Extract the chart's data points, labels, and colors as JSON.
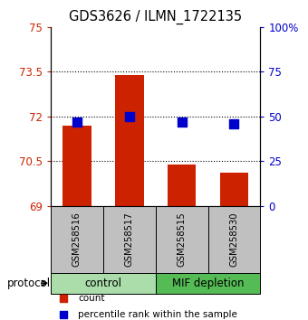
{
  "title": "GDS3626 / ILMN_1722135",
  "samples": [
    "GSM258516",
    "GSM258517",
    "GSM258515",
    "GSM258530"
  ],
  "bar_values": [
    71.7,
    73.4,
    70.4,
    70.1
  ],
  "percentile_values": [
    47,
    50,
    47,
    46
  ],
  "bar_color": "#cc2200",
  "dot_color": "#0000cc",
  "ylim_left": [
    69,
    75
  ],
  "yticks_left": [
    69,
    70.5,
    72,
    73.5,
    75
  ],
  "ytick_labels_left": [
    "69",
    "70.5",
    "72",
    "73.5",
    "75"
  ],
  "ylim_right": [
    0,
    100
  ],
  "yticks_right": [
    0,
    25,
    50,
    75,
    100
  ],
  "ytick_labels_right": [
    "0",
    "25",
    "50",
    "75",
    "100%"
  ],
  "groups": [
    {
      "label": "control",
      "n_samples": 2,
      "color": "#aaddaa"
    },
    {
      "label": "MIF depletion",
      "n_samples": 2,
      "color": "#55bb55"
    }
  ],
  "protocol_label": "protocol",
  "legend_items": [
    {
      "color": "#cc2200",
      "label": "count"
    },
    {
      "color": "#0000cc",
      "label": "percentile rank within the sample"
    }
  ],
  "bar_width": 0.55,
  "dot_size": 50,
  "sample_bg_color": "#c0c0c0"
}
